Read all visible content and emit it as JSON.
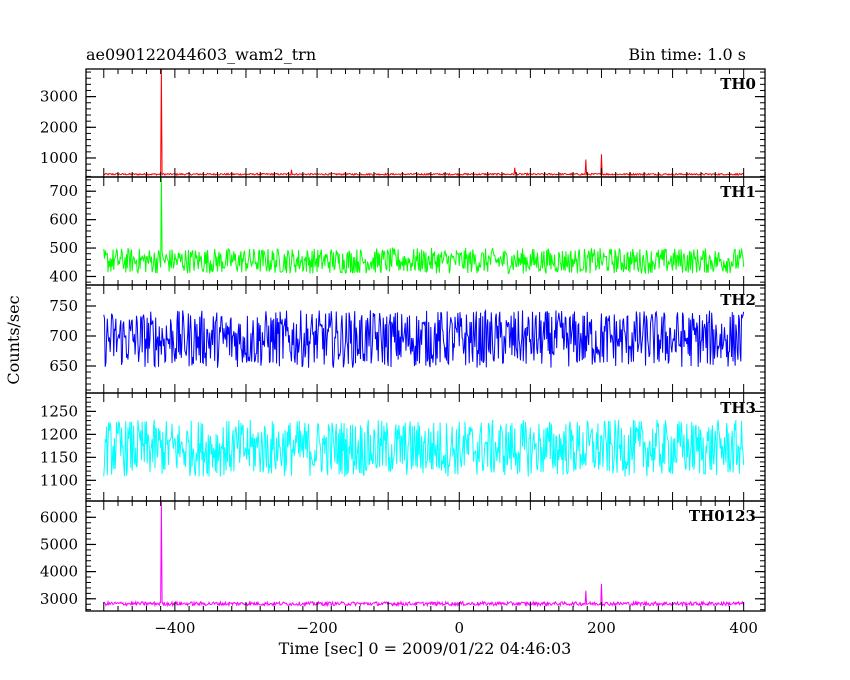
{
  "header": {
    "title": "ae090122044603_wam2_trn",
    "bin_time": "Bin time: 1.0 s"
  },
  "chart_data": {
    "type": "line",
    "title": "ae090122044603_wam2_trn",
    "subtitle": "Bin time: 1.0 s",
    "xlabel": "Time [sec] 0 = 2009/01/22 04:46:03",
    "ylabel": "Counts/sec",
    "xlim": [
      -525,
      430
    ],
    "x_ticks": [
      -400,
      -200,
      0,
      200,
      400
    ],
    "x_tick_labels": [
      "−400",
      "−200",
      "0",
      "200",
      "400"
    ],
    "x_data_range": [
      -500,
      400
    ],
    "panels": [
      {
        "name": "TH0",
        "color": "#ff0000",
        "ylim": [
          380,
          3900
        ],
        "y_ticks": [
          1000,
          2000,
          3000
        ],
        "y_tick_labels": [
          "1000",
          "2000",
          "3000"
        ],
        "baseline": 470,
        "noise_amp": 28,
        "spikes": [
          {
            "x": -419,
            "y": 3900
          },
          {
            "x": -236,
            "y": 620
          },
          {
            "x": 78,
            "y": 680
          },
          {
            "x": 178,
            "y": 950
          },
          {
            "x": 200,
            "y": 1120
          }
        ]
      },
      {
        "name": "TH1",
        "color": "#00ff00",
        "ylim": [
          370,
          750
        ],
        "y_ticks": [
          400,
          500,
          600,
          700
        ],
        "y_tick_labels": [
          "400",
          "500",
          "600",
          "700"
        ],
        "baseline": 455,
        "noise_amp": 45,
        "spikes": [
          {
            "x": -419,
            "y": 750
          }
        ]
      },
      {
        "name": "TH2",
        "color": "#0000ff",
        "ylim": [
          605,
          785
        ],
        "y_ticks": [
          650,
          700,
          750
        ],
        "y_tick_labels": [
          "650",
          "700",
          "750"
        ],
        "baseline": 695,
        "noise_amp": 48,
        "spikes": []
      },
      {
        "name": "TH3",
        "color": "#00ffff",
        "ylim": [
          1055,
          1290
        ],
        "y_ticks": [
          1100,
          1150,
          1200,
          1250
        ],
        "y_tick_labels": [
          "1100",
          "1150",
          "1200",
          "1250"
        ],
        "baseline": 1170,
        "noise_amp": 62,
        "spikes": []
      },
      {
        "name": "TH0123",
        "color": "#ff00ff",
        "ylim": [
          2550,
          6600
        ],
        "y_ticks": [
          3000,
          4000,
          5000,
          6000
        ],
        "y_tick_labels": [
          "3000",
          "4000",
          "5000",
          "6000"
        ],
        "baseline": 2820,
        "noise_amp": 70,
        "spikes": [
          {
            "x": -419,
            "y": 6600
          },
          {
            "x": 178,
            "y": 3300
          },
          {
            "x": 200,
            "y": 3550
          }
        ]
      }
    ]
  }
}
